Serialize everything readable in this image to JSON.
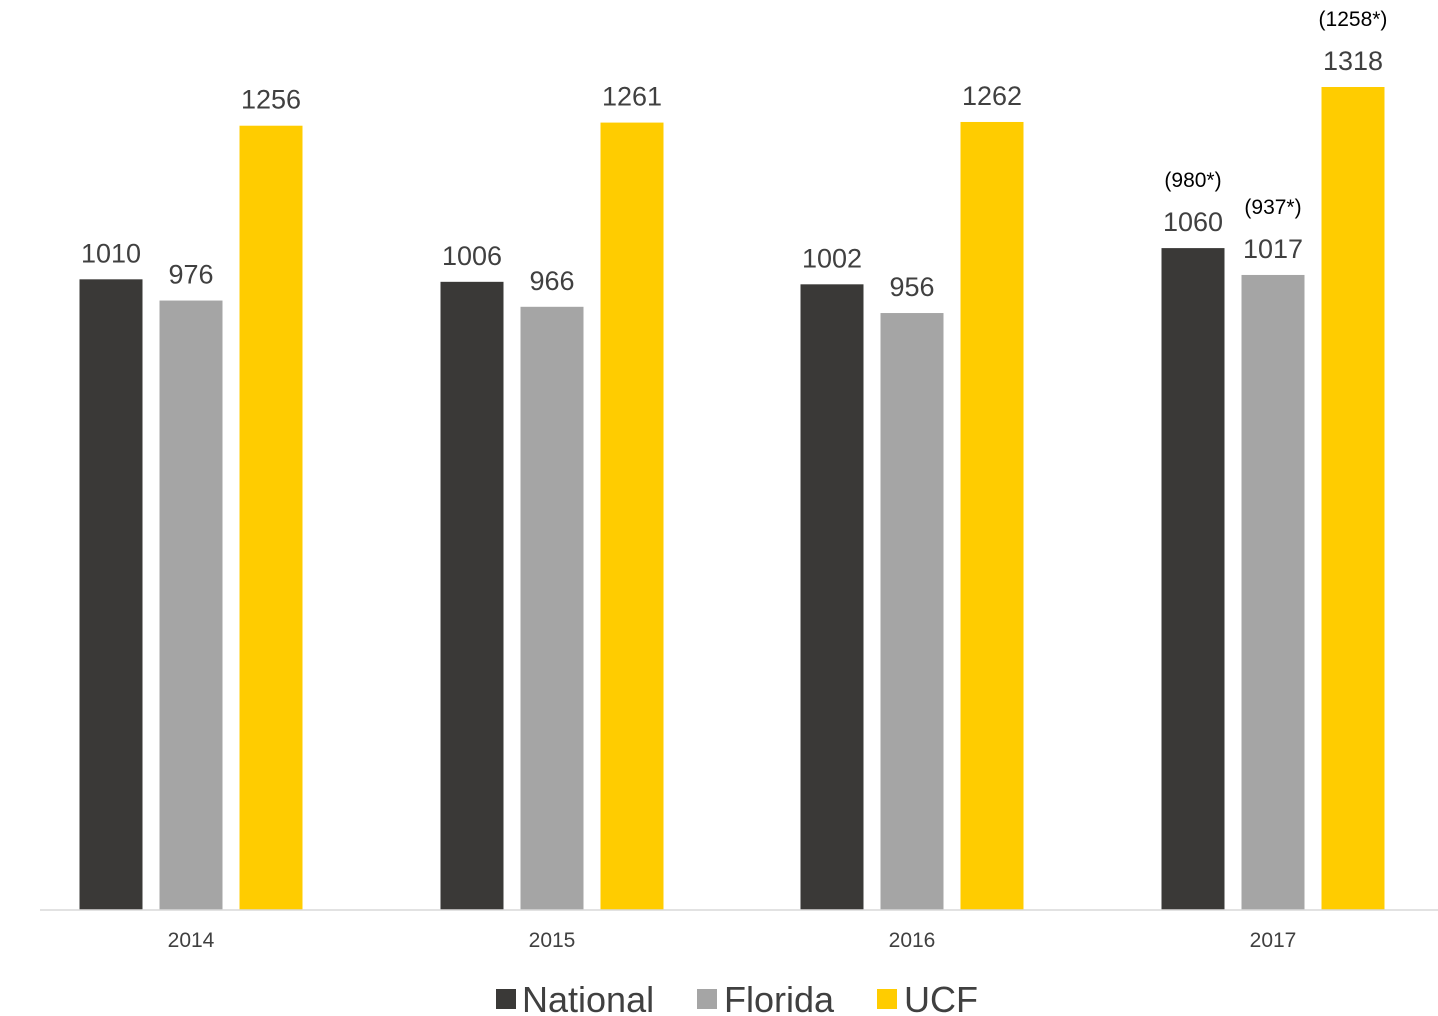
{
  "chart_data": {
    "type": "bar",
    "categories": [
      "2014",
      "2015",
      "2016",
      "2017"
    ],
    "series": [
      {
        "name": "National",
        "color": "#3a3937",
        "values": [
          1010,
          1006,
          1002,
          1060
        ],
        "notes": [
          "",
          "",
          "",
          "(980*)"
        ]
      },
      {
        "name": "Florida",
        "color": "#a5a5a5",
        "values": [
          976,
          966,
          956,
          1017
        ],
        "notes": [
          "",
          "",
          "",
          "(937*)"
        ]
      },
      {
        "name": "UCF",
        "color": "#ffcc00",
        "values": [
          1256,
          1261,
          1262,
          1318
        ],
        "notes": [
          "",
          "",
          "",
          "(1258*)"
        ]
      }
    ],
    "ylim": [
      0,
      1318
    ],
    "grid": false,
    "legend": "bottom-center",
    "title": "",
    "xlabel": "",
    "ylabel": ""
  }
}
